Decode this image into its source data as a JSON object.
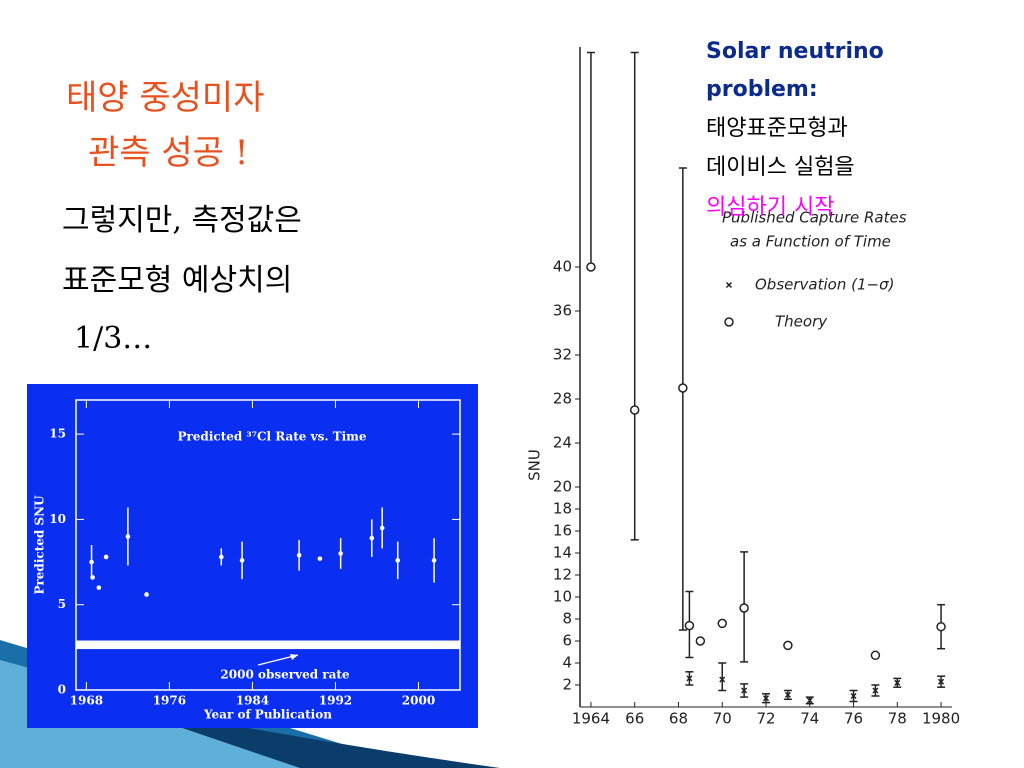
{
  "slide": {
    "title": [
      "태양 중성미자",
      "관측 성공 !"
    ],
    "body": [
      "그렇지만, 측정값은",
      "표준모형 예상치의",
      "1/3…"
    ],
    "note": {
      "heading": [
        "Solar neutrino",
        "problem:"
      ],
      "lines": [
        "태양표준모형과",
        "데이비스 실험을"
      ],
      "highlight": "의심하기 시작"
    }
  },
  "chart_data": [
    {
      "type": "errorbar",
      "title": "Predicted ³⁷Cl Rate vs. Time",
      "x_label": "Year of Publication",
      "y_label": "Predicted SNU",
      "color": "#ffffff",
      "background": "#0b2ff0",
      "xlim": [
        1967,
        2004
      ],
      "ylim": [
        0,
        17
      ],
      "xticks": [
        1968,
        1976,
        1984,
        1992,
        2000
      ],
      "yticks": [
        0,
        5,
        10,
        15
      ],
      "x": [
        1968.5,
        1968.6,
        1969.2,
        1969.9,
        1972,
        1973.8,
        1981,
        1983,
        1988.5,
        1990.5,
        1992.5,
        1995.5,
        1996.5,
        1998,
        2001.5
      ],
      "values": [
        7.5,
        6.6,
        6.0,
        7.8,
        9.0,
        5.6,
        7.8,
        7.6,
        7.9,
        7.7,
        8.0,
        8.9,
        9.5,
        7.6,
        7.6
      ],
      "errors": [
        1.0,
        null,
        null,
        null,
        1.7,
        null,
        0.5,
        1.1,
        0.9,
        null,
        0.9,
        1.1,
        1.2,
        1.1,
        1.3
      ],
      "band": [
        2.4,
        2.9
      ],
      "band_label": "2000 observed rate"
    },
    {
      "type": "errorbar",
      "y_label": "SNU",
      "color": "#222222",
      "legend_title": [
        "Published Capture Rates",
        "as a Function of Time"
      ],
      "xlim": [
        1963.5,
        1980.5
      ],
      "ylim": [
        0,
        60
      ],
      "xticks": [
        1964,
        {
          "value": 1966,
          "label": "66"
        },
        {
          "value": 1968,
          "label": "68"
        },
        {
          "value": 1970,
          "label": "70"
        },
        {
          "value": 1972,
          "label": "72"
        },
        {
          "value": 1974,
          "label": "74"
        },
        {
          "value": 1976,
          "label": "76"
        },
        {
          "value": 1978,
          "label": "78"
        },
        1980
      ],
      "yticks": [
        2,
        4,
        6,
        8,
        10,
        12,
        14,
        16,
        18,
        20,
        24,
        28,
        32,
        36,
        40
      ],
      "series": [
        {
          "name": "Observation (1−σ)",
          "marker": "x",
          "x": [
            1968.5,
            1970,
            1971,
            1972,
            1973,
            1974,
            1976,
            1977,
            1978,
            1980
          ],
          "values": [
            2.6,
            2.5,
            1.5,
            0.8,
            1.1,
            0.6,
            1.0,
            1.5,
            2.2,
            2.3
          ],
          "low": [
            2.0,
            1.5,
            0.9,
            0.4,
            0.7,
            0.3,
            0.5,
            1.0,
            1.8,
            1.8
          ],
          "high": [
            3.2,
            4.0,
            2.1,
            1.2,
            1.5,
            0.9,
            1.5,
            2.0,
            2.6,
            2.8
          ]
        },
        {
          "name": "Theory",
          "marker": "o",
          "x": [
            1964,
            1966,
            1968.2,
            1968.5,
            1969,
            1970,
            1971,
            1973,
            1977,
            1980
          ],
          "values": [
            40,
            27,
            29,
            7.4,
            6.0,
            7.6,
            9.0,
            5.6,
            4.7,
            7.3
          ],
          "low": [
            null,
            15.2,
            7.0,
            4.5,
            null,
            null,
            4.1,
            null,
            null,
            5.3
          ],
          "high": [
            59.5,
            59.5,
            49,
            10.5,
            null,
            null,
            14.1,
            null,
            null,
            9.3
          ]
        }
      ]
    }
  ]
}
